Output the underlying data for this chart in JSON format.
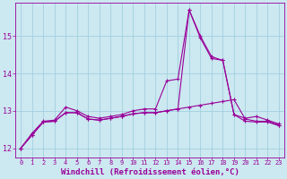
{
  "xlabel": "Windchill (Refroidissement éolien,°C)",
  "background_color": "#cce8f0",
  "line_color": "#990099",
  "grid_color": "#99ccdd",
  "xlim": [
    -0.5,
    23.5
  ],
  "ylim": [
    11.75,
    15.9
  ],
  "yticks": [
    12,
    13,
    14,
    15
  ],
  "xticks": [
    0,
    1,
    2,
    3,
    4,
    5,
    6,
    7,
    8,
    9,
    10,
    11,
    12,
    13,
    14,
    15,
    16,
    17,
    18,
    19,
    20,
    21,
    22,
    23
  ],
  "series1_x": [
    0,
    1,
    2,
    3,
    4,
    5,
    6,
    7,
    8,
    9,
    10,
    11,
    12,
    13,
    14,
    15,
    16,
    17,
    18,
    19,
    20,
    21,
    22,
    23
  ],
  "series1_y": [
    12.0,
    12.4,
    12.72,
    12.75,
    13.1,
    13.0,
    12.85,
    12.8,
    12.85,
    12.9,
    13.0,
    13.05,
    13.05,
    13.8,
    13.85,
    15.7,
    15.0,
    14.45,
    14.35,
    12.9,
    12.8,
    12.85,
    12.75,
    12.65
  ],
  "series2_x": [
    0,
    1,
    2,
    3,
    4,
    5,
    6,
    7,
    8,
    9,
    10,
    11,
    12,
    13,
    14,
    15,
    16,
    17,
    18,
    19,
    20,
    21,
    22,
    23
  ],
  "series2_y": [
    12.0,
    12.35,
    12.7,
    12.72,
    12.95,
    12.95,
    12.78,
    12.75,
    12.8,
    12.85,
    12.92,
    12.95,
    12.95,
    13.0,
    13.05,
    13.1,
    13.15,
    13.2,
    13.25,
    13.3,
    12.78,
    12.72,
    12.72,
    12.62
  ],
  "series3_x": [
    0,
    1,
    2,
    3,
    4,
    5,
    6,
    7,
    8,
    9,
    10,
    11,
    12,
    13,
    14,
    15,
    16,
    17,
    18,
    19,
    20,
    21,
    22,
    23
  ],
  "series3_y": [
    12.0,
    12.35,
    12.7,
    12.72,
    12.95,
    12.95,
    12.78,
    12.75,
    12.8,
    12.85,
    12.92,
    12.95,
    12.95,
    13.0,
    13.05,
    15.7,
    14.95,
    14.4,
    14.35,
    12.9,
    12.72,
    12.7,
    12.7,
    12.6
  ],
  "marker": "+",
  "markersize": 3,
  "linewidth": 0.8,
  "tick_fontsize": 5.0,
  "xlabel_fontsize": 6.5
}
